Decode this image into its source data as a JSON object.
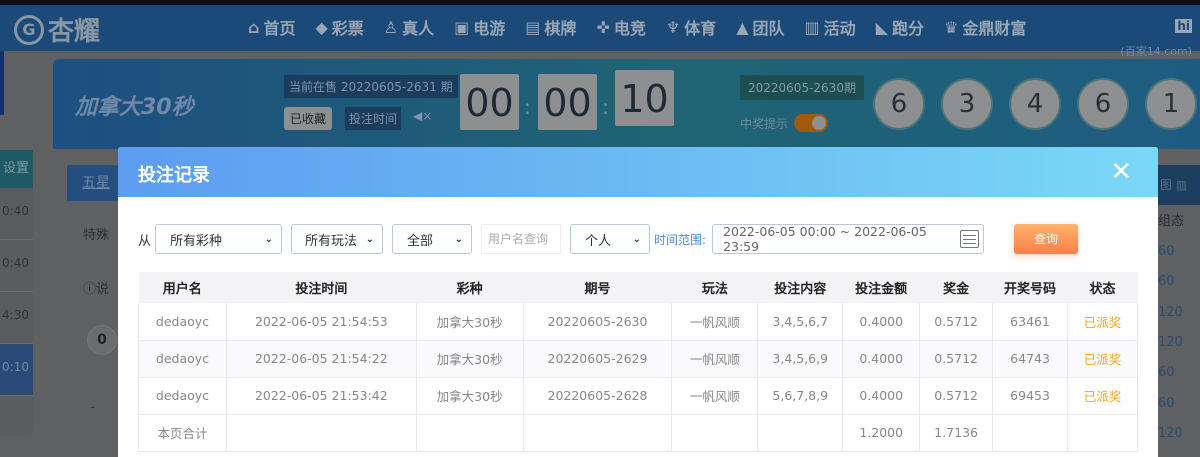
{
  "nav": {
    "logo": "杏耀",
    "items": [
      {
        "icon": "home-icon",
        "glyph": "⌂",
        "label": "首页"
      },
      {
        "icon": "lottery-icon",
        "glyph": "◆",
        "label": "彩票"
      },
      {
        "icon": "live-icon",
        "glyph": "♙",
        "label": "真人"
      },
      {
        "icon": "slot-icon",
        "glyph": "▣",
        "label": "电游"
      },
      {
        "icon": "chess-icon",
        "glyph": "▤",
        "label": "棋牌"
      },
      {
        "icon": "gamepad-icon",
        "glyph": "✜",
        "label": "电竞"
      },
      {
        "icon": "trophy-icon",
        "glyph": "♆",
        "label": "体育"
      },
      {
        "icon": "team-icon",
        "glyph": "▲",
        "label": "团队"
      },
      {
        "icon": "gift-icon",
        "glyph": "▥",
        "label": "活动"
      },
      {
        "icon": "rhino-icon",
        "glyph": "◣",
        "label": "跑分"
      },
      {
        "icon": "coin-icon",
        "glyph": "♛",
        "label": "金鼎财富"
      }
    ],
    "watermark": "(百家14.com)",
    "hi": "hi"
  },
  "banner": {
    "game_name": "加拿大30秒",
    "current": "当前在售 20220605-2631 期",
    "favorited": "已收藏",
    "bet_time": "投注时间",
    "countdown": [
      "00",
      "00",
      "10"
    ],
    "last_issue": "20220605-2630期",
    "win_alert": "中奖提示",
    "win_alert_on": true,
    "balls": [
      "6",
      "3",
      "4",
      "6",
      "1"
    ]
  },
  "background": {
    "side_title": "设置",
    "side_items": [
      "0:40",
      "0:40",
      "4:30",
      "0:10"
    ],
    "tab": "五星",
    "special": "特殊",
    "note": "说",
    "zero": "0",
    "dash": "-",
    "right_head": "图",
    "right_sub": "组态",
    "right_values": [
      "60",
      "60",
      "120",
      "120",
      "60",
      "60",
      "120"
    ]
  },
  "modal": {
    "title": "投注记录",
    "filters": {
      "from_label": "从",
      "lottery": "所有彩种",
      "play": "所有玩法",
      "status": "全部",
      "username_placeholder": "用户名查询",
      "scope": "个人",
      "time_range_label": "时间范围:",
      "time_range": "2022-06-05 00:00 ~ 2022-06-05 23:59",
      "query": "查询"
    },
    "columns": [
      "用户名",
      "投注时间",
      "彩种",
      "期号",
      "玩法",
      "投注内容",
      "投注金额",
      "奖金",
      "开奖号码",
      "状态"
    ],
    "rows": [
      [
        "dedaoyc",
        "2022-06-05 21:54:53",
        "加拿大30秒",
        "20220605-2630",
        "一帆风顺",
        "3,4,5,6,7",
        "0.4000",
        "0.5712",
        "63461",
        "已派奖"
      ],
      [
        "dedaoyc",
        "2022-06-05 21:54:22",
        "加拿大30秒",
        "20220605-2629",
        "一帆风顺",
        "3,4,5,6,9",
        "0.4000",
        "0.5712",
        "64743",
        "已派奖"
      ],
      [
        "dedaoyc",
        "2022-06-05 21:53:42",
        "加拿大30秒",
        "20220605-2628",
        "一帆风顺",
        "5,6,7,8,9",
        "0.4000",
        "0.5712",
        "69453",
        "已派奖"
      ]
    ],
    "total": {
      "label": "本页合计",
      "amount": "1.2000",
      "bonus": "1.7136"
    },
    "colors": {
      "header_start": "#5d9cf0",
      "header_end": "#7ad8f6",
      "status": "#f3a51c",
      "query": "#fb7f4b"
    }
  }
}
